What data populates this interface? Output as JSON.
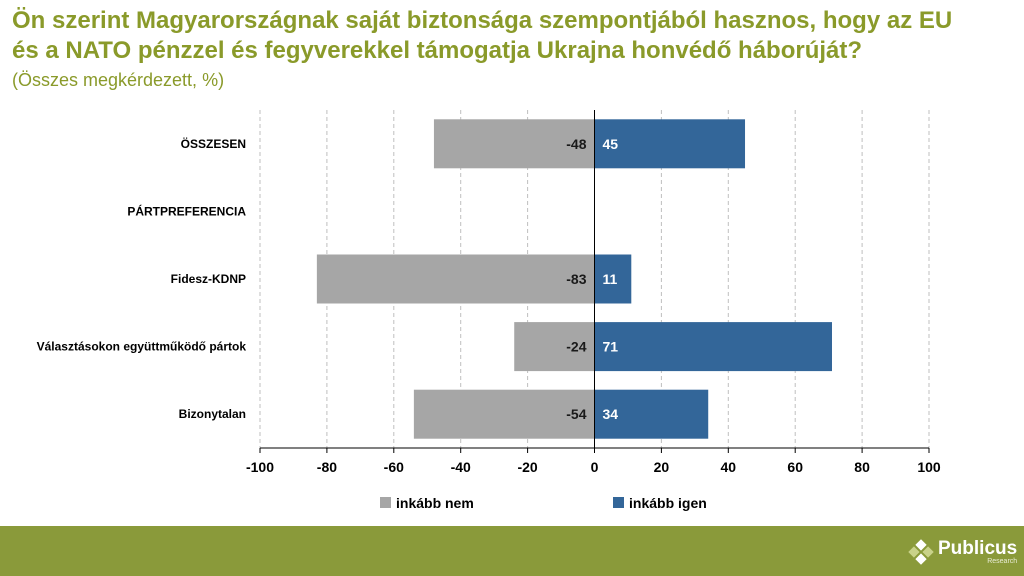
{
  "title_line1": "Ön szerint Magyarországnak saját biztonsága szempontjából hasznos, hogy az EU",
  "title_line2": "és a NATO pénzzel és fegyverekkel támogatja Ukrajna honvédő háborúját?",
  "subtitle": "(Összes megkérdezett, %)",
  "logo": {
    "name": "Publicus",
    "sub": "Research"
  },
  "colors": {
    "title": "#8a9a2a",
    "neg": "#a6a6a6",
    "pos": "#336699",
    "footer": "#8a9a3a"
  },
  "chart_data": {
    "type": "bar",
    "orientation": "horizontal",
    "stacked_diverging": true,
    "categories": [
      "ÖSSZESEN",
      "PÁRTPREFERENCIA",
      "Fidesz-KDNP",
      "Választásokon együttműködő pártok",
      "Bizonytalan"
    ],
    "series": [
      {
        "name": "inkább nem",
        "values": [
          -48,
          null,
          -83,
          -24,
          -54
        ],
        "color": "#a6a6a6"
      },
      {
        "name": "inkább igen",
        "values": [
          45,
          null,
          11,
          71,
          34
        ],
        "color": "#336699"
      }
    ],
    "xlim": [
      -100,
      100
    ],
    "xticks": [
      -100,
      -80,
      -60,
      -40,
      -20,
      0,
      20,
      40,
      60,
      80,
      100
    ],
    "grid": "vertical-dashed",
    "legend": "bottom",
    "xlabel": "",
    "ylabel": ""
  }
}
